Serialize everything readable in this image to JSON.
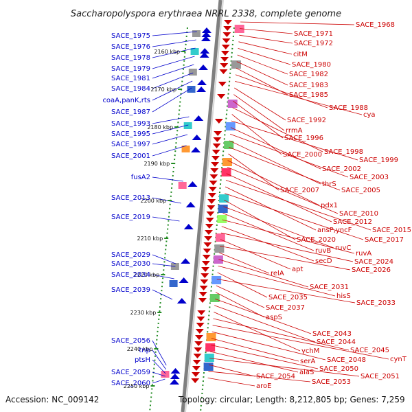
{
  "title": "Saccharopolyspora erythraea NRRL 2338, complete genome",
  "accession": "Accession: NC_009142",
  "topology": "Topology: circular; Length: 8,212,805 bp; Genes: 7,259",
  "colors": {
    "forward_strand": "#0000cc",
    "reverse_strand": "#cc0000",
    "dotted_line": "#228b22",
    "ring": "#888888"
  },
  "kbp_ticks": [
    "2160 kbp",
    "2170 kbp",
    "2180 kbp",
    "2190 kbp",
    "2200 kbp",
    "2210 kbp",
    "2220 kbp",
    "2230 kbp",
    "2240 kbp",
    "2250 kbp"
  ],
  "left_genes": [
    "SACE_1975",
    "SACE_1976",
    "SACE_1978",
    "SACE_1979",
    "SACE_1981",
    "SACE_1984",
    "coaA,panK,rts",
    "SACE_1987",
    "SACE_1993",
    "SACE_1995",
    "SACE_1997",
    "SACE_2001",
    "fusA2",
    "SACE_2013",
    "SACE_2019",
    "SACE_2029",
    "SACE_2030",
    "SACE_2034",
    "SACE_2039",
    "SACE_2056",
    "tnp",
    "ptsH",
    "SACE_2059",
    "SACE_2060"
  ],
  "right_genes": [
    "SACE_1968",
    "SACE_1971",
    "SACE_1972",
    "citM",
    "SACE_1980",
    "SACE_1982",
    "SACE_1983",
    "SACE_1985",
    "SACE_1988",
    "cya",
    "SACE_1992",
    "rrmA",
    "SACE_1996",
    "SACE_1998",
    "SACE_2000",
    "SACE_1999",
    "SACE_2002",
    "SACE_2003",
    "thrS",
    "SACE_2005",
    "SACE_2007",
    "pdx1",
    "SACE_2010",
    "SACE_2012",
    "SACE_2015",
    "ansP,yncF",
    "SACE_2017",
    "SACE_2020",
    "ruvC",
    "ruvB",
    "ruvA",
    "secD",
    "SACE_2024",
    "apt",
    "SACE_2026",
    "relA",
    "SACE_2031",
    "hisS",
    "SACE_2035",
    "SACE_2033",
    "SACE_2037",
    "aspS",
    "SACE_2043",
    "SACE_2044",
    "ychM",
    "SACE_2045",
    "cynT",
    "SACE_2048",
    "serA",
    "SACE_2050",
    "alaS",
    "SACE_2051",
    "SACE_2054",
    "SACE_2053",
    "aroE"
  ]
}
